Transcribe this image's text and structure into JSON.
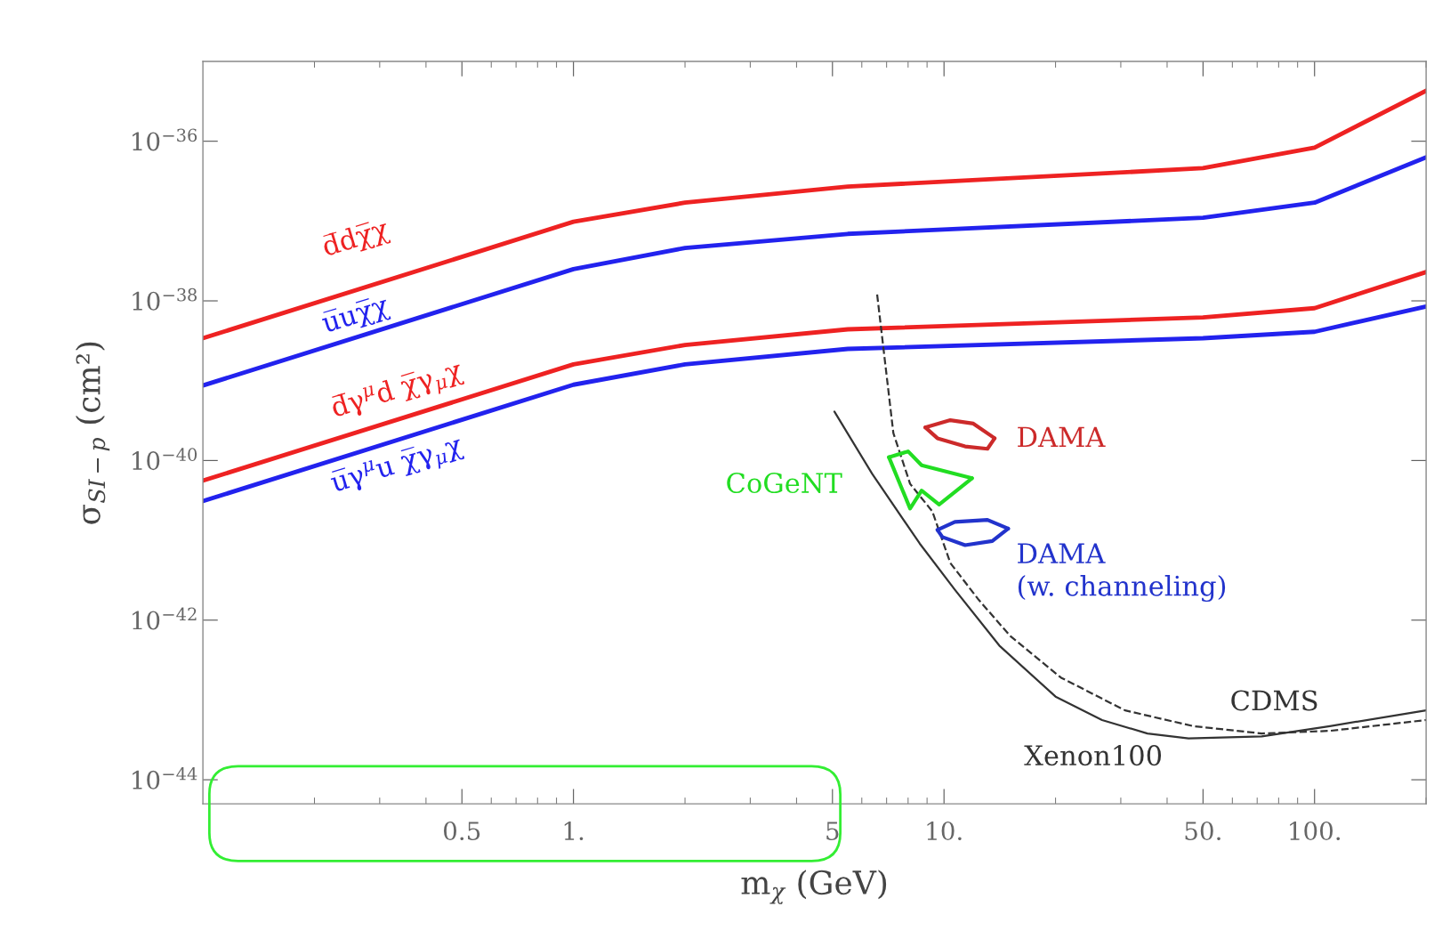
{
  "chart_data": {
    "type": "line",
    "xlabel": "m$_{χ}$ (GeV)",
    "ylabel": "σ$_{SI−p}$ (cm²)",
    "log": "xy",
    "xlim": [
      0.1,
      200
    ],
    "ylim": [
      5e-45,
      1e-35
    ],
    "xticks": [
      {
        "value": 0.5,
        "label": "0.5"
      },
      {
        "value": 1,
        "label": "1."
      },
      5,
      {
        "value": 10,
        "label": "10."
      },
      {
        "value": 50,
        "label": "50."
      },
      {
        "value": 100,
        "label": "100."
      }
    ],
    "yticks": [
      {
        "value": 1e-36,
        "label": "10$^{−36}$"
      },
      {
        "value": 1e-38,
        "label": "10$^{−38}$"
      },
      {
        "value": 1e-40,
        "label": "10$^{−40}$"
      },
      {
        "value": 1e-42,
        "label": "10$^{−42}$"
      },
      {
        "value": 1e-44,
        "label": "10$^{−44}$"
      }
    ],
    "grid": false,
    "legend": false,
    "series": [
      {
        "name": "d̅dχ̅χ",
        "color": "#ee2222",
        "x": [
          0.1,
          1,
          2,
          5.5,
          50,
          100,
          200
        ],
        "values": [
          3.4e-39,
          9.8e-38,
          1.7e-37,
          2.7e-37,
          4.6e-37,
          8.3e-37,
          4.3e-36
        ]
      },
      {
        "name": "u̅uχ̅χ",
        "color": "#2222ee",
        "x": [
          0.1,
          1,
          2,
          5.5,
          50,
          100,
          200
        ],
        "values": [
          8.7e-40,
          2.5e-38,
          4.6e-38,
          6.9e-38,
          1.1e-37,
          1.7e-37,
          6.3e-37
        ]
      },
      {
        "name": "d̅γ$^{μ}$d χ̅γ$_{μ}$χ",
        "color": "#ee2222",
        "x": [
          0.1,
          1,
          2,
          5.5,
          50,
          100,
          200
        ],
        "values": [
          5.6e-41,
          1.6e-39,
          2.8e-39,
          4.4e-39,
          6.2e-39,
          8.1e-39,
          2.3e-38
        ]
      },
      {
        "name": "u̅γ$^{μ}$u χ̅γ$_{μ}$χ",
        "color": "#2222ee",
        "x": [
          0.1,
          1,
          2,
          5.5,
          50,
          100,
          200
        ],
        "values": [
          3.1e-41,
          8.9e-40,
          1.6e-39,
          2.5e-39,
          3.4e-39,
          4.1e-39,
          8.5e-39
        ]
      },
      {
        "name": "CDMS",
        "color": "#333333",
        "line_style": "dashed",
        "x": [
          6.6,
          7.3,
          8.1,
          9.3,
          10.4,
          12.4,
          15.1,
          20.7,
          30.8,
          47,
          72,
          110,
          200
        ],
        "values": [
          1.2e-38,
          2.2e-40,
          5.1e-41,
          2.3e-41,
          5.2e-42,
          1.8e-42,
          6.3e-43,
          1.9e-43,
          7.4e-44,
          4.7e-44,
          3.8e-44,
          4.1e-44,
          5.6e-44
        ]
      },
      {
        "name": "Xenon100",
        "color": "#333333",
        "line_style": "solid",
        "x": [
          5.06,
          6.4,
          8.6,
          10.7,
          14.1,
          20,
          26.7,
          35.4,
          45.7,
          72,
          110,
          200
        ],
        "values": [
          4.1e-40,
          6.8e-41,
          9.1e-42,
          2.4e-42,
          4.8e-43,
          1.1e-43,
          5.6e-44,
          3.8e-44,
          3.3e-44,
          3.5e-44,
          4.7e-44,
          7.4e-44
        ]
      },
      {
        "name": "DAMA",
        "color": "#cc2a2a",
        "x": [
          8.9,
          10.4,
          12.0,
          13.7
        ],
        "values": [
          2.6e-40,
          3.2e-40,
          2.9e-40,
          1.9e-40
        ]
      },
      {
        "color": "#cc2a2a",
        "x": [
          8.9,
          9.6,
          11.4,
          13.1,
          13.7
        ],
        "values": [
          2.6e-40,
          1.9e-40,
          1.5e-40,
          1.4e-40,
          1.9e-40
        ]
      },
      {
        "name": "CoGeNT",
        "color": "#22dd22",
        "x": [
          7.1,
          8.0,
          8.7,
          11.9
        ],
        "values": [
          1.1e-40,
          1.3e-40,
          8.7e-41,
          6e-41
        ]
      },
      {
        "color": "#22dd22",
        "x": [
          7.1,
          8.1,
          8.7,
          9.7,
          11.9
        ],
        "values": [
          1.1e-40,
          2.5e-41,
          4.2e-41,
          2.8e-41,
          6e-41
        ]
      },
      {
        "name": "DAMA\n(w. channeling)",
        "color": "#2233cc",
        "x": [
          9.6,
          10.7,
          13.1,
          14.9
        ],
        "values": [
          1.35e-41,
          1.7e-41,
          1.8e-41,
          1.4e-41
        ]
      },
      {
        "color": "#2233cc",
        "x": [
          9.6,
          9.9,
          11.4,
          13.5,
          14.9
        ],
        "values": [
          1.35e-41,
          1.1e-41,
          8.7e-42,
          9.8e-42,
          1.4e-41
        ]
      }
    ]
  }
}
